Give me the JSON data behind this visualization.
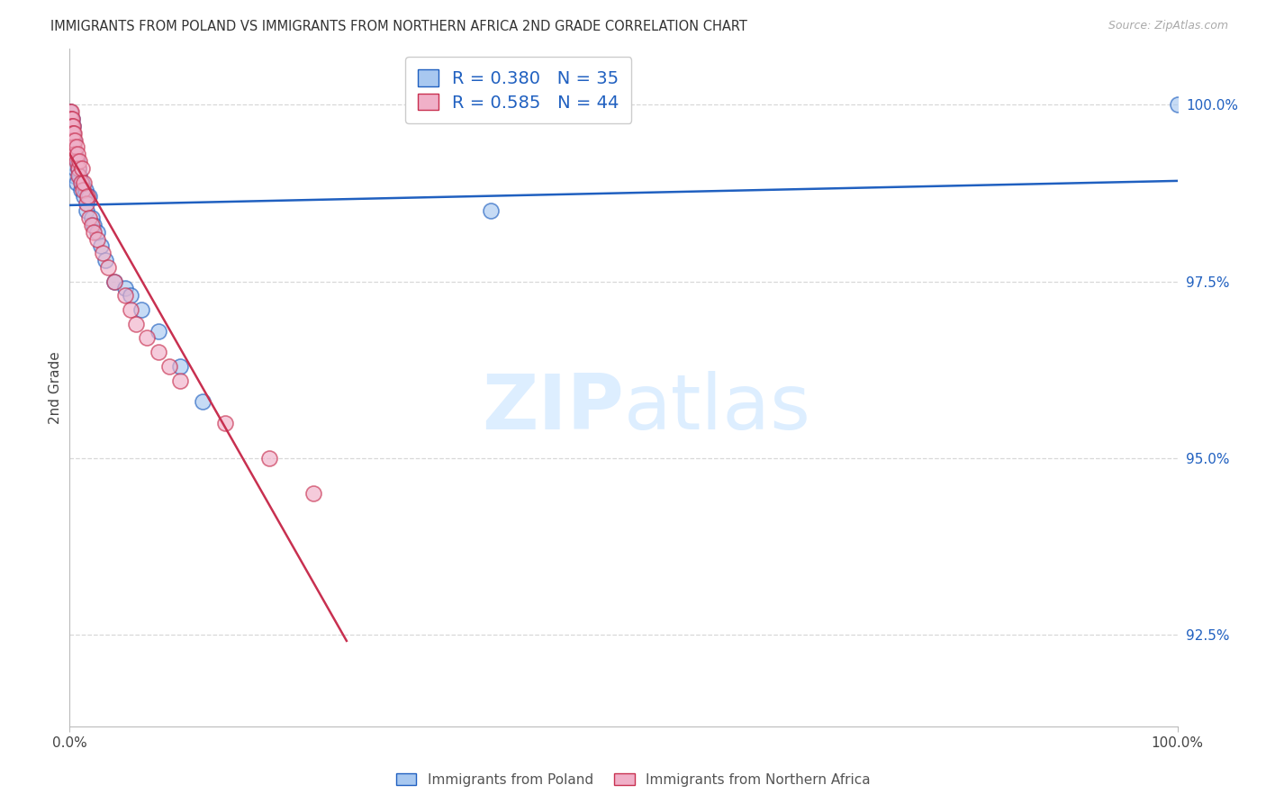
{
  "title": "IMMIGRANTS FROM POLAND VS IMMIGRANTS FROM NORTHERN AFRICA 2ND GRADE CORRELATION CHART",
  "source": "Source: ZipAtlas.com",
  "ylabel": "2nd Grade",
  "legend1_label": "Immigrants from Poland",
  "legend2_label": "Immigrants from Northern Africa",
  "R_poland": 0.38,
  "N_poland": 35,
  "R_africa": 0.585,
  "N_africa": 44,
  "scatter_color_poland": "#a8c8f0",
  "scatter_color_africa": "#f0b0c8",
  "line_color_poland": "#2060c0",
  "line_color_africa": "#c83050",
  "grid_color": "#d8d8d8",
  "watermark_color": "#ddeeff",
  "yticks": [
    1.0,
    0.975,
    0.95,
    0.925
  ],
  "ytick_labels": [
    "100.0%",
    "97.5%",
    "95.0%",
    "92.5%"
  ],
  "xlim": [
    0.0,
    1.0
  ],
  "ylim": [
    0.912,
    1.008
  ],
  "poland_x": [
    0.0005,
    0.001,
    0.001,
    0.002,
    0.002,
    0.003,
    0.003,
    0.004,
    0.004,
    0.005,
    0.005,
    0.006,
    0.007,
    0.008,
    0.009,
    0.01,
    0.011,
    0.013,
    0.014,
    0.015,
    0.018,
    0.02,
    0.022,
    0.025,
    0.028,
    0.032,
    0.04,
    0.05,
    0.055,
    0.065,
    0.08,
    0.1,
    0.12,
    0.38,
    1.0
  ],
  "poland_y": [
    0.999,
    0.998,
    0.997,
    0.998,
    0.996,
    0.997,
    0.996,
    0.995,
    0.99,
    0.993,
    0.991,
    0.989,
    0.992,
    0.991,
    0.99,
    0.988,
    0.989,
    0.987,
    0.988,
    0.985,
    0.987,
    0.984,
    0.983,
    0.982,
    0.98,
    0.978,
    0.975,
    0.974,
    0.973,
    0.971,
    0.968,
    0.963,
    0.958,
    0.985,
    1.0
  ],
  "africa_x": [
    0.0003,
    0.0005,
    0.001,
    0.001,
    0.001,
    0.002,
    0.002,
    0.002,
    0.003,
    0.003,
    0.003,
    0.004,
    0.004,
    0.005,
    0.005,
    0.006,
    0.006,
    0.007,
    0.008,
    0.008,
    0.009,
    0.01,
    0.011,
    0.012,
    0.013,
    0.015,
    0.016,
    0.018,
    0.02,
    0.022,
    0.025,
    0.03,
    0.035,
    0.04,
    0.05,
    0.055,
    0.06,
    0.07,
    0.08,
    0.09,
    0.1,
    0.14,
    0.18,
    0.22
  ],
  "africa_y": [
    0.999,
    0.998,
    0.999,
    0.998,
    0.997,
    0.998,
    0.997,
    0.996,
    0.997,
    0.996,
    0.995,
    0.996,
    0.994,
    0.995,
    0.993,
    0.994,
    0.992,
    0.993,
    0.991,
    0.99,
    0.992,
    0.989,
    0.991,
    0.988,
    0.989,
    0.986,
    0.987,
    0.984,
    0.983,
    0.982,
    0.981,
    0.979,
    0.977,
    0.975,
    0.973,
    0.971,
    0.969,
    0.967,
    0.965,
    0.963,
    0.961,
    0.955,
    0.95,
    0.945
  ]
}
